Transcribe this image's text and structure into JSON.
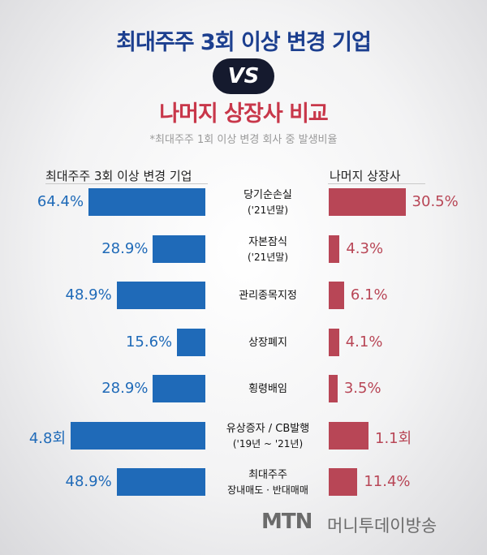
{
  "header": {
    "title": "최대주주 3회 이상 변경 기업",
    "vs": "VS",
    "subtitle": "나머지 상장사 비교",
    "note": "*최대주주 1회 이상 변경 회사 중 발생비율"
  },
  "column_headers": {
    "left": "최대주주 3회 이상 변경 기업",
    "right": "나머지 상장사"
  },
  "chart_data": {
    "type": "bar",
    "categories": [
      {
        "line1": "당기순손실",
        "line2": "('21년말)"
      },
      {
        "line1": "자본잠식",
        "line2": "('21년말)"
      },
      {
        "line1": "관리종목지정",
        "line2": ""
      },
      {
        "line1": "상장폐지",
        "line2": ""
      },
      {
        "line1": "횡령배임",
        "line2": ""
      },
      {
        "line1": "유상증자 / CB발행",
        "line2": "('19년 ~ '21년)"
      },
      {
        "line1": "최대주주",
        "line2": "장내매도 · 반대매매"
      }
    ],
    "series": [
      {
        "name": "최대주주 3회 이상 변경 기업",
        "values": [
          64.4,
          28.9,
          48.9,
          15.6,
          28.9,
          4.8,
          48.9
        ],
        "labels": [
          "64.4%",
          "28.9%",
          "48.9%",
          "15.6%",
          "28.9%",
          "4.8회",
          "48.9%"
        ],
        "color": "#1f6ab8"
      },
      {
        "name": "나머지 상장사",
        "values": [
          30.5,
          4.3,
          6.1,
          4.1,
          3.5,
          1.1,
          11.4
        ],
        "labels": [
          "30.5%",
          "4.3%",
          "6.1%",
          "4.1%",
          "3.5%",
          "1.1회",
          "11.4%"
        ],
        "color": "#b84656"
      }
    ]
  },
  "brand": {
    "logo": "MTN",
    "name": "머니투데이방송"
  }
}
